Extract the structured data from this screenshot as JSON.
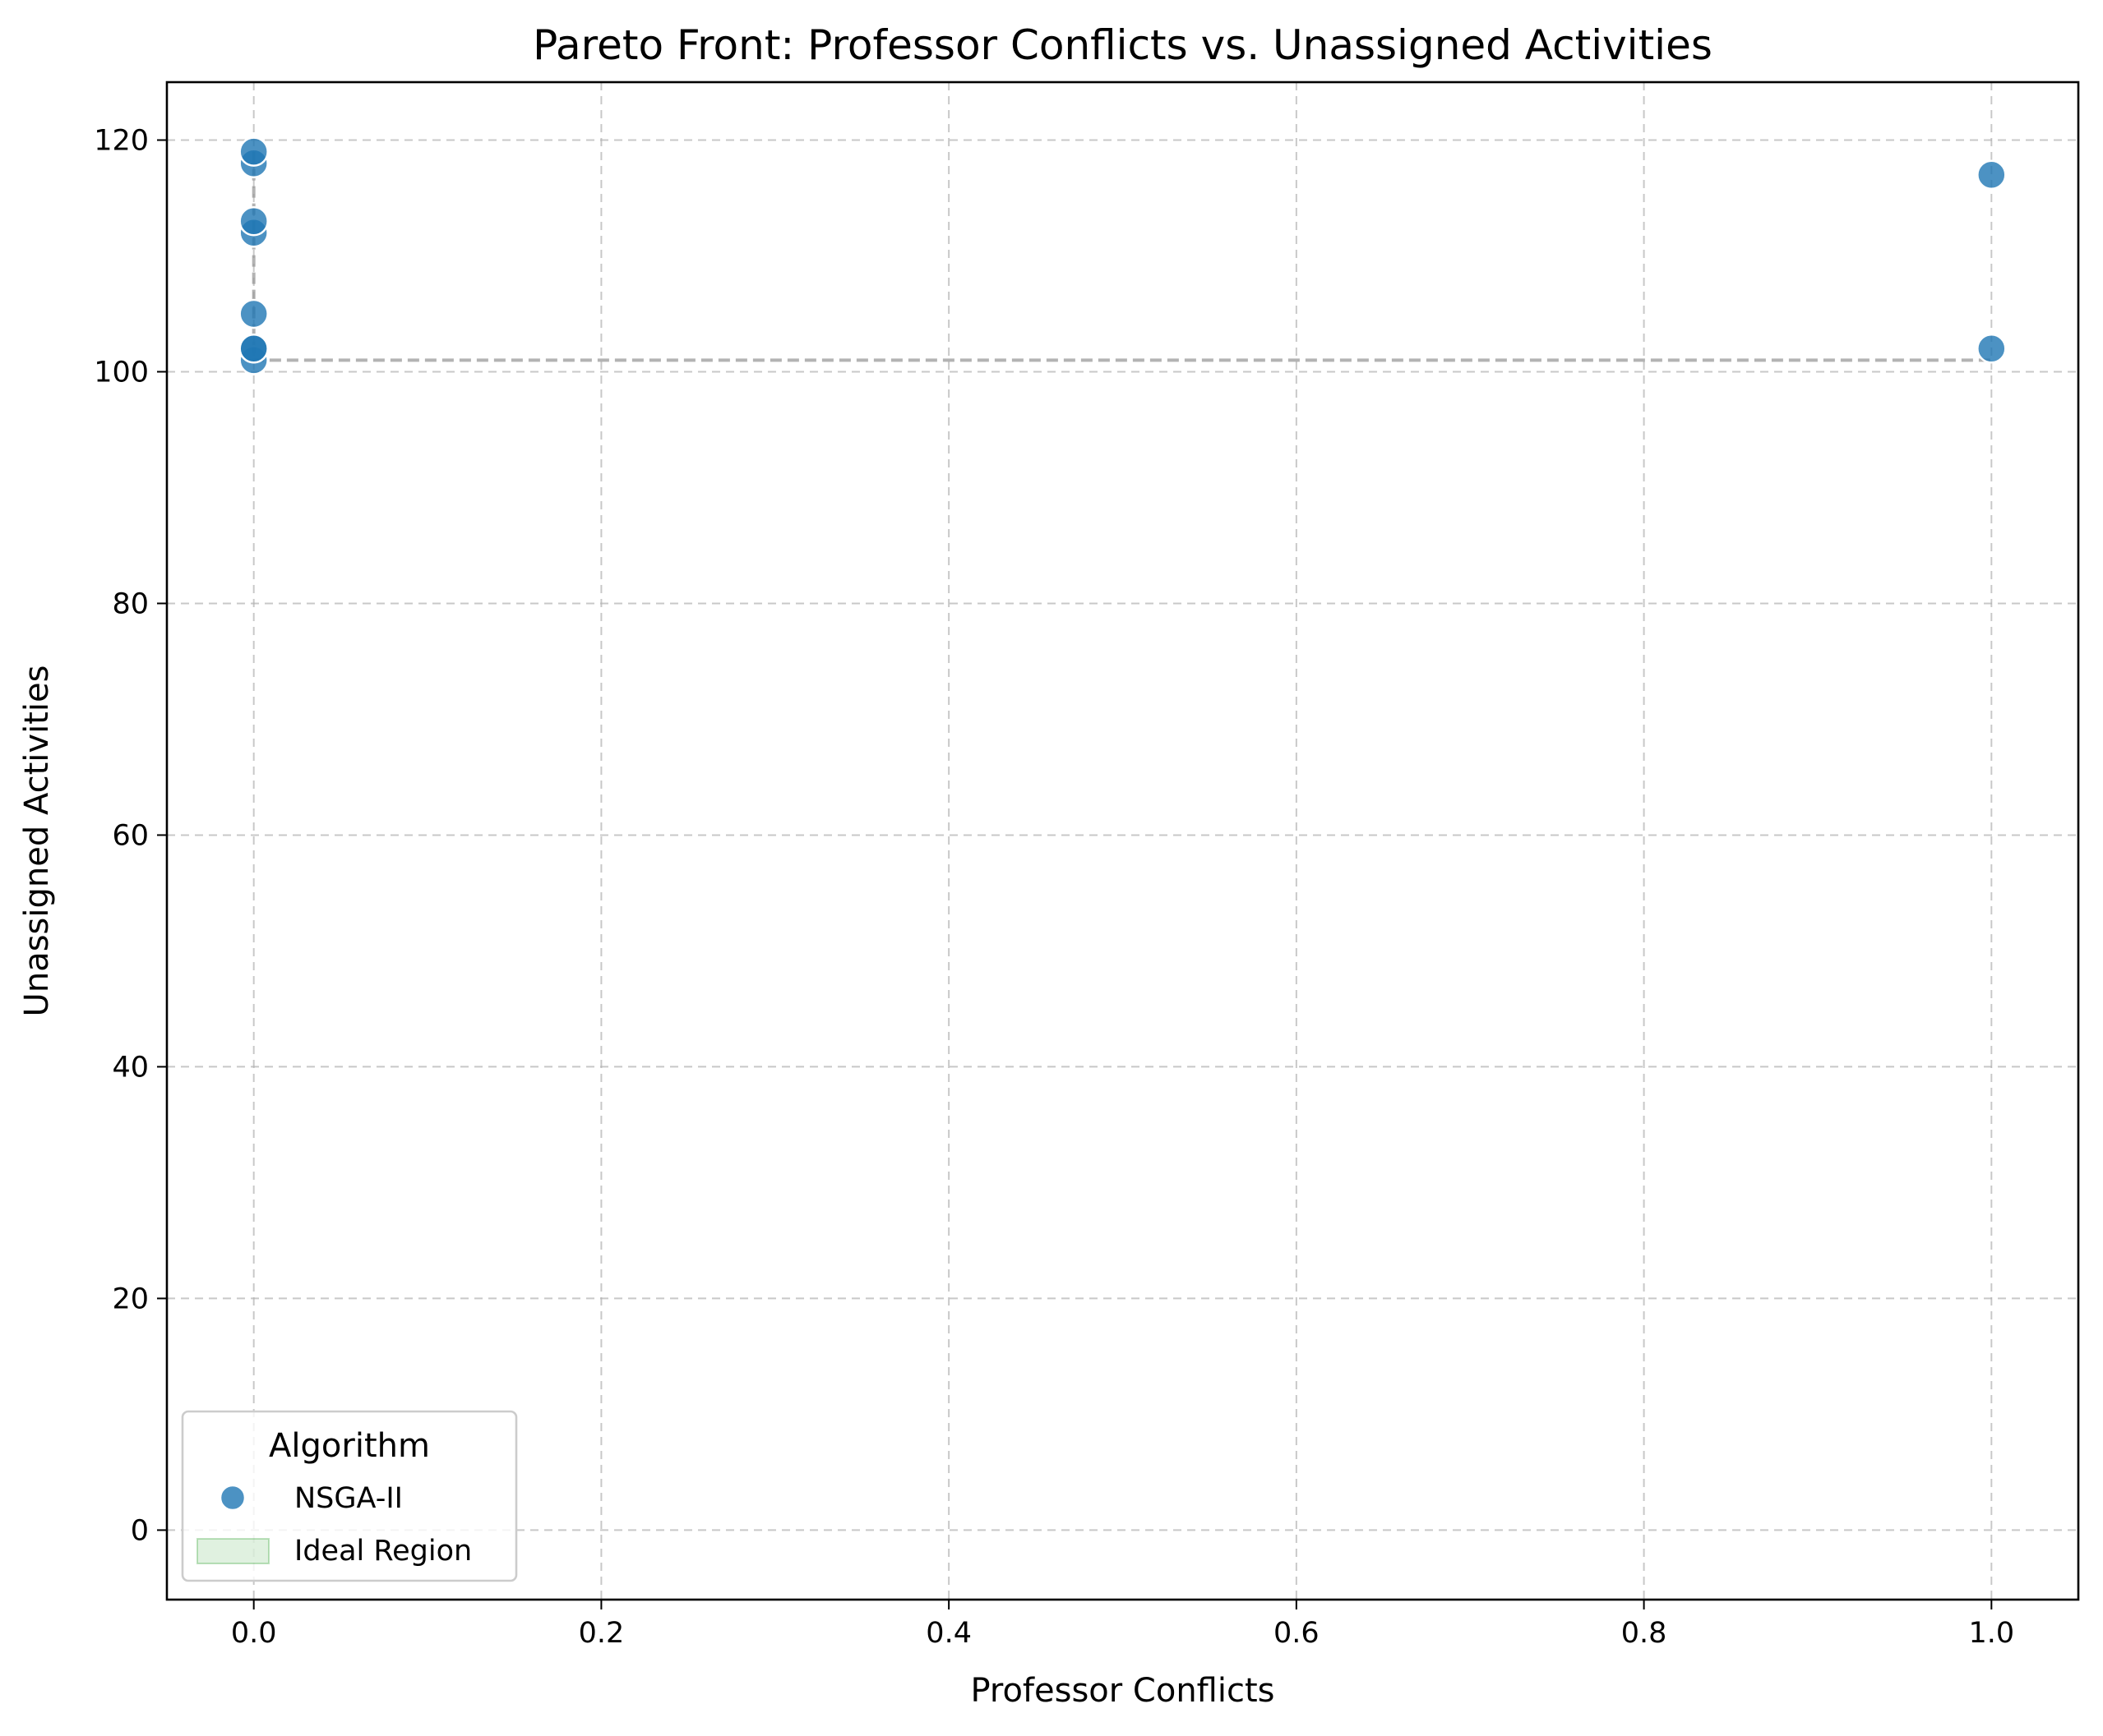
{
  "chart_data": {
    "type": "scatter",
    "title": "Pareto Front: Professor Conflicts vs. Unassigned Activities",
    "xlabel": "Professor Conflicts",
    "ylabel": "Unassigned Activities",
    "xlim": [
      -0.05,
      1.05
    ],
    "ylim": [
      -6,
      125
    ],
    "x_ticks": [
      0.0,
      0.2,
      0.4,
      0.6,
      0.8,
      1.0
    ],
    "x_tick_labels": [
      "0.0",
      "0.2",
      "0.4",
      "0.6",
      "0.8",
      "1.0"
    ],
    "y_ticks": [
      0,
      20,
      40,
      60,
      80,
      100,
      120
    ],
    "y_tick_labels": [
      "0",
      "20",
      "40",
      "60",
      "80",
      "100",
      "120"
    ],
    "grid": true,
    "legend": {
      "title": "Algorithm",
      "position": "lower-left",
      "entries": [
        {
          "label": "NSGA-II",
          "kind": "marker",
          "color": "#1f77b4"
        },
        {
          "label": "Ideal Region",
          "kind": "patch",
          "color": "#2ca02c"
        }
      ]
    },
    "series": [
      {
        "name": "NSGA-II",
        "color": "#1f77b4",
        "points": [
          {
            "x": 0,
            "y": 101
          },
          {
            "x": 0,
            "y": 102
          },
          {
            "x": 0,
            "y": 102
          },
          {
            "x": 0,
            "y": 105
          },
          {
            "x": 0,
            "y": 112
          },
          {
            "x": 0,
            "y": 113
          },
          {
            "x": 0,
            "y": 118
          },
          {
            "x": 0,
            "y": 119
          },
          {
            "x": 1,
            "y": 102
          },
          {
            "x": 1,
            "y": 117
          }
        ]
      }
    ],
    "pareto_line": {
      "color": "#999999",
      "style": "dashed",
      "points": [
        {
          "x": 0,
          "y": 119
        },
        {
          "x": 0,
          "y": 101
        },
        {
          "x": 1,
          "y": 101
        }
      ]
    }
  }
}
